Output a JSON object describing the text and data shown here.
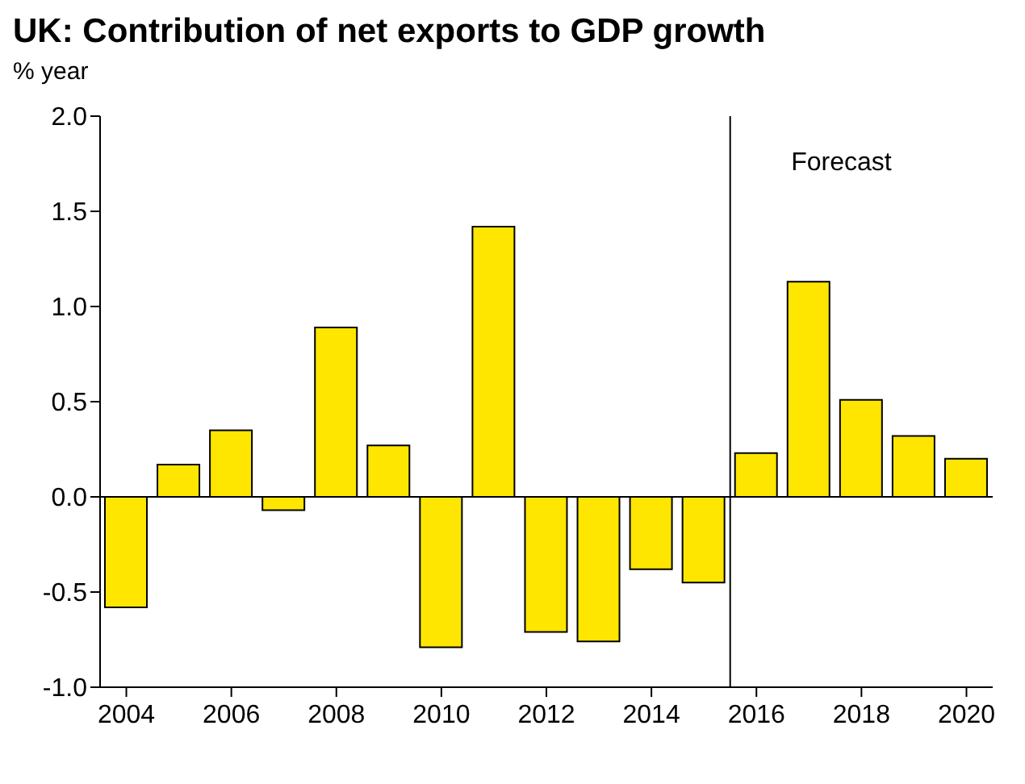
{
  "chart_data": {
    "type": "bar",
    "title": "UK: Contribution of net exports to GDP growth",
    "ylabel": "% year",
    "x": [
      2004,
      2005,
      2006,
      2007,
      2008,
      2009,
      2010,
      2011,
      2012,
      2013,
      2014,
      2015,
      2016,
      2017,
      2018,
      2019,
      2020
    ],
    "values": [
      -0.58,
      0.17,
      0.35,
      -0.07,
      0.89,
      0.27,
      -0.79,
      1.42,
      -0.71,
      -0.76,
      -0.38,
      -0.45,
      0.23,
      1.13,
      0.51,
      0.32,
      0.2
    ],
    "color": "#ffe600",
    "xlim": [
      2003.5,
      2020.5
    ],
    "xticks": [
      2004,
      2006,
      2008,
      2010,
      2012,
      2014,
      2016,
      2018,
      2020
    ],
    "ylim": [
      -1,
      2
    ],
    "yticks": [
      {
        "value": -1,
        "label": "-1.0"
      },
      -0.5,
      {
        "value": 0,
        "label": "0.0"
      },
      0.5,
      {
        "value": 1,
        "label": "1.0"
      },
      1.5,
      {
        "value": 2,
        "label": "2.0"
      }
    ],
    "ref_lines": [
      {
        "axis": "x",
        "value": 2015.5,
        "label": "Forecast",
        "color": "#000000"
      },
      {
        "axis": "y",
        "value": 0,
        "color": "#000000"
      }
    ],
    "grid": false,
    "legend": false
  }
}
